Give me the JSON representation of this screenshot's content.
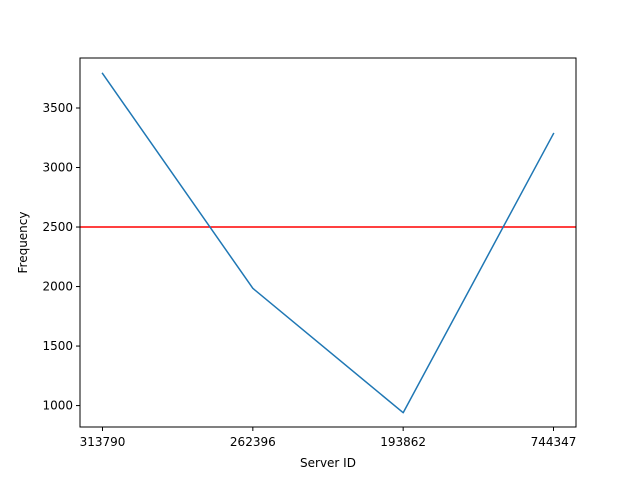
{
  "chart_data": {
    "type": "line",
    "title": "",
    "xlabel": "Server ID",
    "ylabel": "Frequency",
    "categories": [
      "313790",
      "262396",
      "193862",
      "744347"
    ],
    "series": [
      {
        "values": [
          3790,
          1985,
          940,
          3285
        ],
        "color": "#1f77b4"
      }
    ],
    "reference_line": {
      "y": 2500,
      "color": "#ff0000"
    },
    "yticks": [
      1000,
      1500,
      2000,
      2500,
      3000,
      3500
    ],
    "ytick_labels": [
      "1000",
      "1500",
      "2000",
      "2500",
      "3000",
      "3500"
    ],
    "ylim": [
      820,
      3920
    ],
    "grid": false,
    "legend": "none"
  }
}
